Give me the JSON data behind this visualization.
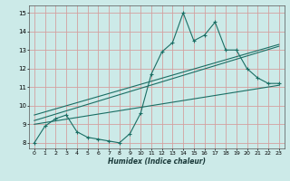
{
  "xlabel": "Humidex (Indice chaleur)",
  "background_color": "#cceae8",
  "grid_color": "#d4a0a0",
  "line_color": "#1a6e64",
  "xlim": [
    -0.5,
    23.5
  ],
  "ylim": [
    7.7,
    15.4
  ],
  "xticks": [
    0,
    1,
    2,
    3,
    4,
    5,
    6,
    7,
    8,
    9,
    10,
    11,
    12,
    13,
    14,
    15,
    16,
    17,
    18,
    19,
    20,
    21,
    22,
    23
  ],
  "yticks": [
    8,
    9,
    10,
    11,
    12,
    13,
    14,
    15
  ],
  "curve_x": [
    0,
    1,
    2,
    3,
    4,
    5,
    6,
    7,
    8,
    9,
    10,
    11,
    12,
    13,
    14,
    15,
    16,
    17,
    18,
    19,
    20,
    21,
    22,
    23
  ],
  "curve_y": [
    8.0,
    8.9,
    9.3,
    9.5,
    8.6,
    8.3,
    8.2,
    8.1,
    8.0,
    8.5,
    9.6,
    11.7,
    12.9,
    13.4,
    15.0,
    13.5,
    13.8,
    14.5,
    13.0,
    13.0,
    12.0,
    11.5,
    11.2,
    11.2
  ],
  "line1_x": [
    0,
    23
  ],
  "line1_y": [
    9.0,
    11.1
  ],
  "line2_x": [
    0,
    23
  ],
  "line2_y": [
    9.2,
    13.2
  ],
  "line3_x": [
    0,
    23
  ],
  "line3_y": [
    9.5,
    13.3
  ]
}
